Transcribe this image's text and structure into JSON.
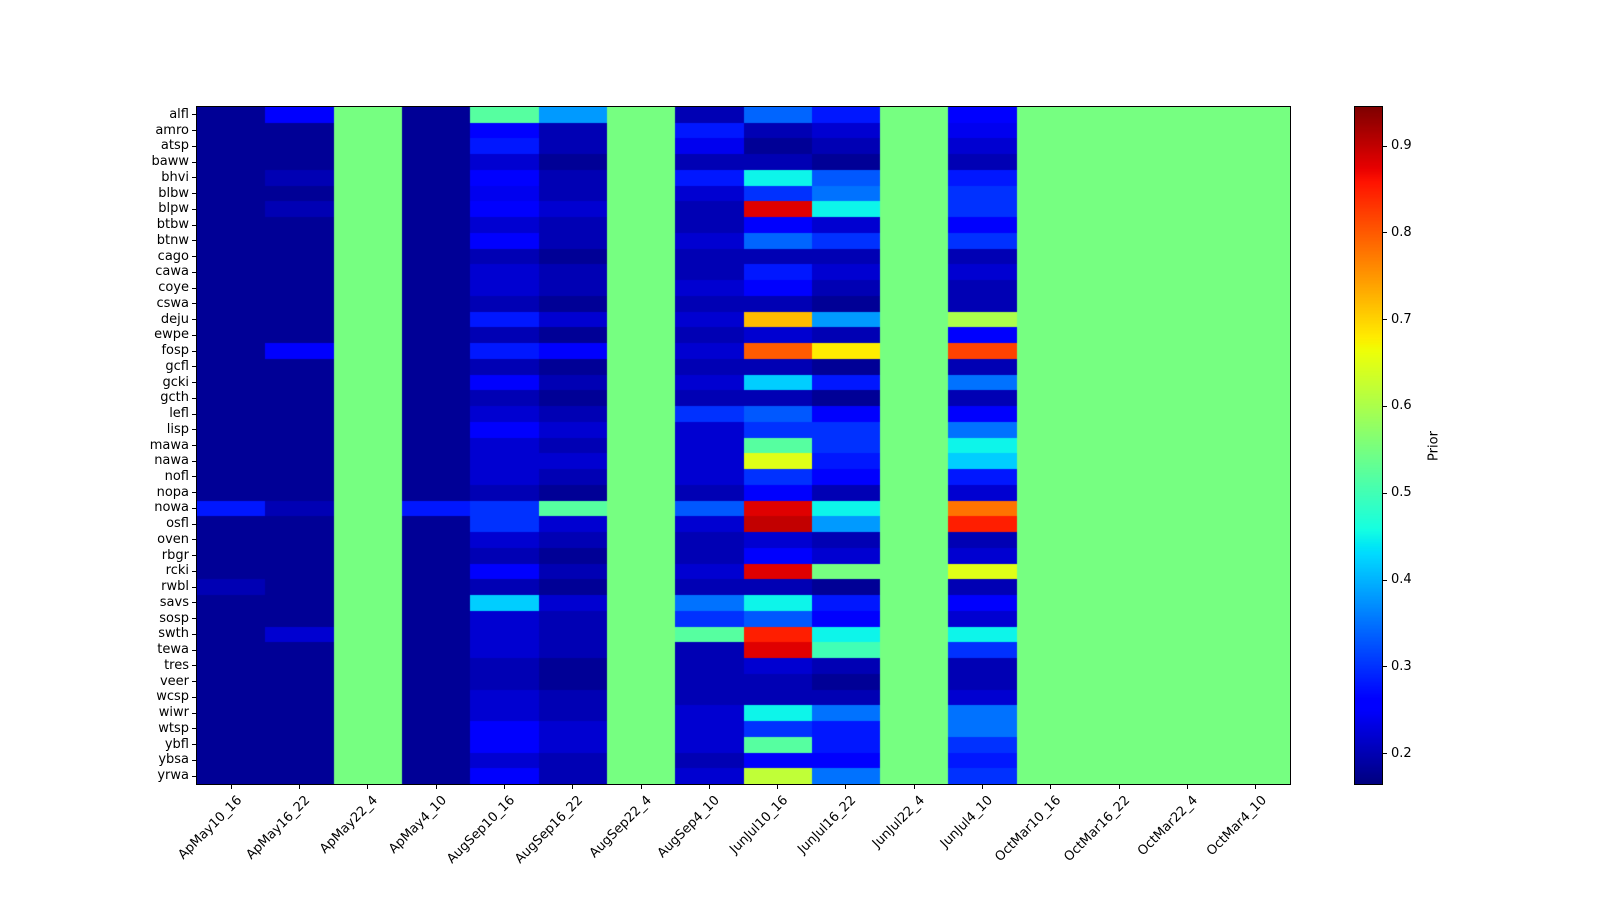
{
  "chart_data": {
    "type": "heatmap",
    "colormap": "jet",
    "vmin": 0.165,
    "vmax": 0.945,
    "colorbar": {
      "label": "Prior",
      "ticks": [
        0.2,
        0.3,
        0.4,
        0.5,
        0.6,
        0.7,
        0.8,
        0.9
      ]
    },
    "x_labels": [
      "ApMay10_16",
      "ApMay16_22",
      "ApMay22_4",
      "ApMay4_10",
      "AugSep10_16",
      "AugSep16_22",
      "AugSep22_4",
      "AugSep4_10",
      "JunJul10_16",
      "JunJul16_22",
      "JunJul22_4",
      "JunJul4_10",
      "OctMar10_16",
      "OctMar16_22",
      "OctMar22_4",
      "OctMar4_10"
    ],
    "y_labels": [
      "alfl",
      "amro",
      "atsp",
      "baww",
      "bhvi",
      "blbw",
      "blpw",
      "btbw",
      "btnw",
      "cago",
      "cawa",
      "coye",
      "cswa",
      "deju",
      "ewpe",
      "fosp",
      "gcfl",
      "gcki",
      "gcth",
      "lefl",
      "lisp",
      "mawa",
      "nawa",
      "nofl",
      "nopa",
      "nowa",
      "osfl",
      "oven",
      "rbgr",
      "rcki",
      "rwbl",
      "savs",
      "sosp",
      "swth",
      "tewa",
      "tres",
      "veer",
      "wcsp",
      "wiwr",
      "wtsp",
      "ybfl",
      "ybsa",
      "yrwa"
    ],
    "values": [
      [
        0.18,
        0.26,
        0.55,
        0.18,
        0.52,
        0.38,
        0.55,
        0.2,
        0.34,
        0.28,
        0.55,
        0.26,
        0.55,
        0.55,
        0.55,
        0.55
      ],
      [
        0.18,
        0.18,
        0.55,
        0.18,
        0.26,
        0.2,
        0.55,
        0.28,
        0.2,
        0.22,
        0.55,
        0.24,
        0.55,
        0.55,
        0.55,
        0.55
      ],
      [
        0.18,
        0.18,
        0.55,
        0.18,
        0.28,
        0.2,
        0.55,
        0.24,
        0.18,
        0.2,
        0.55,
        0.22,
        0.55,
        0.55,
        0.55,
        0.55
      ],
      [
        0.18,
        0.18,
        0.55,
        0.18,
        0.22,
        0.18,
        0.55,
        0.2,
        0.2,
        0.18,
        0.55,
        0.2,
        0.55,
        0.55,
        0.55,
        0.55
      ],
      [
        0.18,
        0.2,
        0.55,
        0.18,
        0.26,
        0.2,
        0.55,
        0.28,
        0.45,
        0.33,
        0.55,
        0.28,
        0.55,
        0.55,
        0.55,
        0.55
      ],
      [
        0.18,
        0.18,
        0.55,
        0.18,
        0.24,
        0.2,
        0.55,
        0.22,
        0.3,
        0.35,
        0.55,
        0.3,
        0.55,
        0.55,
        0.55,
        0.55
      ],
      [
        0.18,
        0.2,
        0.55,
        0.18,
        0.25,
        0.22,
        0.55,
        0.2,
        0.88,
        0.45,
        0.55,
        0.3,
        0.55,
        0.55,
        0.55,
        0.55
      ],
      [
        0.18,
        0.18,
        0.55,
        0.18,
        0.22,
        0.2,
        0.55,
        0.2,
        0.25,
        0.22,
        0.55,
        0.25,
        0.55,
        0.55,
        0.55,
        0.55
      ],
      [
        0.18,
        0.18,
        0.55,
        0.18,
        0.25,
        0.2,
        0.55,
        0.22,
        0.34,
        0.3,
        0.55,
        0.3,
        0.55,
        0.55,
        0.55,
        0.55
      ],
      [
        0.18,
        0.18,
        0.55,
        0.18,
        0.2,
        0.18,
        0.55,
        0.2,
        0.2,
        0.2,
        0.55,
        0.2,
        0.55,
        0.55,
        0.55,
        0.55
      ],
      [
        0.18,
        0.18,
        0.55,
        0.18,
        0.22,
        0.2,
        0.55,
        0.2,
        0.28,
        0.22,
        0.55,
        0.22,
        0.55,
        0.55,
        0.55,
        0.55
      ],
      [
        0.18,
        0.18,
        0.55,
        0.18,
        0.22,
        0.2,
        0.55,
        0.22,
        0.25,
        0.2,
        0.55,
        0.2,
        0.55,
        0.55,
        0.55,
        0.55
      ],
      [
        0.18,
        0.18,
        0.55,
        0.18,
        0.2,
        0.18,
        0.55,
        0.2,
        0.2,
        0.18,
        0.55,
        0.2,
        0.55,
        0.55,
        0.55,
        0.55
      ],
      [
        0.18,
        0.18,
        0.55,
        0.18,
        0.28,
        0.22,
        0.55,
        0.22,
        0.72,
        0.38,
        0.55,
        0.6,
        0.55,
        0.55,
        0.55,
        0.55
      ],
      [
        0.18,
        0.18,
        0.55,
        0.18,
        0.2,
        0.18,
        0.55,
        0.2,
        0.22,
        0.2,
        0.55,
        0.25,
        0.55,
        0.55,
        0.55,
        0.55
      ],
      [
        0.18,
        0.25,
        0.55,
        0.18,
        0.28,
        0.25,
        0.55,
        0.22,
        0.8,
        0.68,
        0.55,
        0.82,
        0.55,
        0.55,
        0.55,
        0.55
      ],
      [
        0.18,
        0.18,
        0.55,
        0.18,
        0.2,
        0.18,
        0.55,
        0.2,
        0.2,
        0.18,
        0.55,
        0.2,
        0.55,
        0.55,
        0.55,
        0.55
      ],
      [
        0.18,
        0.18,
        0.55,
        0.18,
        0.25,
        0.2,
        0.55,
        0.22,
        0.42,
        0.28,
        0.55,
        0.35,
        0.55,
        0.55,
        0.55,
        0.55
      ],
      [
        0.18,
        0.18,
        0.55,
        0.18,
        0.2,
        0.18,
        0.55,
        0.2,
        0.2,
        0.18,
        0.55,
        0.2,
        0.55,
        0.55,
        0.55,
        0.55
      ],
      [
        0.18,
        0.18,
        0.55,
        0.18,
        0.22,
        0.2,
        0.55,
        0.3,
        0.33,
        0.25,
        0.55,
        0.25,
        0.55,
        0.55,
        0.55,
        0.55
      ],
      [
        0.18,
        0.18,
        0.55,
        0.18,
        0.25,
        0.22,
        0.55,
        0.22,
        0.3,
        0.3,
        0.55,
        0.35,
        0.55,
        0.55,
        0.55,
        0.55
      ],
      [
        0.18,
        0.18,
        0.55,
        0.18,
        0.22,
        0.2,
        0.55,
        0.22,
        0.52,
        0.3,
        0.55,
        0.45,
        0.55,
        0.55,
        0.55,
        0.55
      ],
      [
        0.18,
        0.18,
        0.55,
        0.18,
        0.22,
        0.22,
        0.55,
        0.22,
        0.65,
        0.28,
        0.55,
        0.42,
        0.55,
        0.55,
        0.55,
        0.55
      ],
      [
        0.18,
        0.18,
        0.55,
        0.18,
        0.22,
        0.2,
        0.55,
        0.22,
        0.3,
        0.25,
        0.55,
        0.28,
        0.55,
        0.55,
        0.55,
        0.55
      ],
      [
        0.18,
        0.18,
        0.55,
        0.18,
        0.2,
        0.18,
        0.55,
        0.2,
        0.25,
        0.2,
        0.55,
        0.22,
        0.55,
        0.55,
        0.55,
        0.55
      ],
      [
        0.28,
        0.2,
        0.55,
        0.28,
        0.3,
        0.52,
        0.55,
        0.33,
        0.88,
        0.45,
        0.55,
        0.78,
        0.55,
        0.55,
        0.55,
        0.55
      ],
      [
        0.18,
        0.18,
        0.55,
        0.18,
        0.3,
        0.22,
        0.55,
        0.22,
        0.9,
        0.38,
        0.55,
        0.85,
        0.55,
        0.55,
        0.55,
        0.55
      ],
      [
        0.18,
        0.18,
        0.55,
        0.18,
        0.22,
        0.2,
        0.55,
        0.2,
        0.22,
        0.2,
        0.55,
        0.2,
        0.55,
        0.55,
        0.55,
        0.55
      ],
      [
        0.18,
        0.18,
        0.55,
        0.18,
        0.2,
        0.18,
        0.55,
        0.2,
        0.25,
        0.22,
        0.55,
        0.22,
        0.55,
        0.55,
        0.55,
        0.55
      ],
      [
        0.18,
        0.18,
        0.55,
        0.18,
        0.25,
        0.2,
        0.55,
        0.22,
        0.88,
        0.55,
        0.55,
        0.65,
        0.55,
        0.55,
        0.55,
        0.55
      ],
      [
        0.2,
        0.18,
        0.55,
        0.18,
        0.2,
        0.18,
        0.55,
        0.2,
        0.2,
        0.18,
        0.55,
        0.2,
        0.55,
        0.55,
        0.55,
        0.55
      ],
      [
        0.18,
        0.18,
        0.55,
        0.18,
        0.42,
        0.22,
        0.55,
        0.35,
        0.45,
        0.28,
        0.55,
        0.25,
        0.55,
        0.55,
        0.55,
        0.55
      ],
      [
        0.18,
        0.18,
        0.55,
        0.18,
        0.22,
        0.2,
        0.55,
        0.3,
        0.33,
        0.25,
        0.55,
        0.22,
        0.55,
        0.55,
        0.55,
        0.55
      ],
      [
        0.18,
        0.22,
        0.55,
        0.18,
        0.22,
        0.2,
        0.55,
        0.52,
        0.85,
        0.45,
        0.55,
        0.45,
        0.55,
        0.55,
        0.55,
        0.55
      ],
      [
        0.18,
        0.18,
        0.55,
        0.18,
        0.22,
        0.2,
        0.55,
        0.2,
        0.88,
        0.5,
        0.55,
        0.3,
        0.55,
        0.55,
        0.55,
        0.55
      ],
      [
        0.18,
        0.18,
        0.55,
        0.18,
        0.2,
        0.18,
        0.55,
        0.2,
        0.22,
        0.2,
        0.55,
        0.2,
        0.55,
        0.55,
        0.55,
        0.55
      ],
      [
        0.18,
        0.18,
        0.55,
        0.18,
        0.2,
        0.18,
        0.55,
        0.2,
        0.2,
        0.18,
        0.55,
        0.2,
        0.55,
        0.55,
        0.55,
        0.55
      ],
      [
        0.18,
        0.18,
        0.55,
        0.18,
        0.22,
        0.2,
        0.55,
        0.2,
        0.2,
        0.2,
        0.55,
        0.22,
        0.55,
        0.55,
        0.55,
        0.55
      ],
      [
        0.18,
        0.18,
        0.55,
        0.18,
        0.22,
        0.2,
        0.55,
        0.22,
        0.45,
        0.35,
        0.55,
        0.35,
        0.55,
        0.55,
        0.55,
        0.55
      ],
      [
        0.18,
        0.18,
        0.55,
        0.18,
        0.25,
        0.22,
        0.55,
        0.22,
        0.3,
        0.28,
        0.55,
        0.35,
        0.55,
        0.55,
        0.55,
        0.55
      ],
      [
        0.18,
        0.18,
        0.55,
        0.18,
        0.25,
        0.22,
        0.55,
        0.22,
        0.52,
        0.28,
        0.55,
        0.3,
        0.55,
        0.55,
        0.55,
        0.55
      ],
      [
        0.18,
        0.18,
        0.55,
        0.18,
        0.22,
        0.2,
        0.55,
        0.2,
        0.25,
        0.25,
        0.55,
        0.28,
        0.55,
        0.55,
        0.55,
        0.55
      ],
      [
        0.18,
        0.18,
        0.55,
        0.18,
        0.25,
        0.2,
        0.55,
        0.22,
        0.62,
        0.35,
        0.55,
        0.3,
        0.55,
        0.55,
        0.55,
        0.55
      ]
    ]
  }
}
